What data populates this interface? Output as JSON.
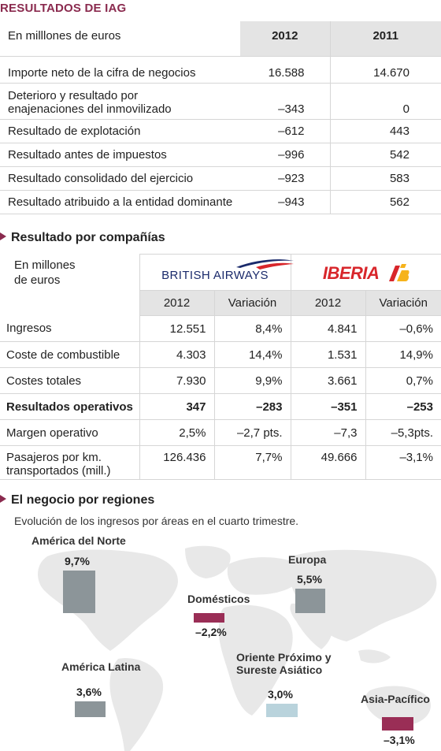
{
  "title": "RESULTADOS DE IAG",
  "table1": {
    "unit": "En milllones de euros",
    "years": [
      "2012",
      "2011"
    ],
    "rows": [
      {
        "label": "Importe neto de la cifra de negocios",
        "v2012": "16.588",
        "v2011": "14.670"
      },
      {
        "label": "Deterioro y resultado por enajenaciones del inmovilizado",
        "v2012": "–343",
        "v2011": "0"
      },
      {
        "label": "Resultado de explotación",
        "v2012": "–612",
        "v2011": "443"
      },
      {
        "label": "Resultado antes de impuestos",
        "v2012": "–996",
        "v2011": "542"
      },
      {
        "label": "Resultado consolidado del ejercicio",
        "v2012": "–923",
        "v2011": "583"
      },
      {
        "label": "Resultado atribuido a la entidad dominante",
        "v2012": "–943",
        "v2011": "562"
      }
    ]
  },
  "section2": {
    "title": "Resultado por compañías",
    "unit_line1": "En millones",
    "unit_line2": "de euros",
    "airline1": "BRITISH AIRWAYS",
    "airline2": "IBERIA",
    "col_year": "2012",
    "col_var": "Variación",
    "rows": [
      {
        "label": "Ingresos",
        "ba": "12.551",
        "ba_var": "8,4%",
        "ib": "4.841",
        "ib_var": "–0,6%"
      },
      {
        "label": "Coste de combustible",
        "ba": "4.303",
        "ba_var": "14,4%",
        "ib": "1.531",
        "ib_var": "14,9%"
      },
      {
        "label": "Costes totales",
        "ba": "7.930",
        "ba_var": "9,9%",
        "ib": "3.661",
        "ib_var": "0,7%"
      },
      {
        "label": "Resultados operativos",
        "ba": "347",
        "ba_var": "–283",
        "ib": "–351",
        "ib_var": "–253"
      },
      {
        "label": "Margen operativo",
        "ba": "2,5%",
        "ba_var": "–2,7 pts.",
        "ib": "–7,3",
        "ib_var": "–5,3pts."
      },
      {
        "label": "Pasajeros por km. transportados (mill.)",
        "ba": "126.436",
        "ba_var": "7,7%",
        "ib": "49.666",
        "ib_var": "–3,1%"
      }
    ]
  },
  "section3": {
    "title": "El negocio por regiones",
    "subtitle": "Evolución de los ingresos por áreas en el cuarto trimestre.",
    "regions": [
      {
        "name": "América del Norte",
        "value": "9,7%",
        "num": 9.7,
        "color": "#8c9599"
      },
      {
        "name": "Europa",
        "value": "5,5%",
        "num": 5.5,
        "color": "#8c9599"
      },
      {
        "name": "Domésticos",
        "value": "–2,2%",
        "num": -2.2,
        "color": "#9a2e56"
      },
      {
        "name": "América Latina",
        "value": "3,6%",
        "num": 3.6,
        "color": "#8c9599"
      },
      {
        "name": "Oriente Próximo y",
        "name2": "Sureste Asiático",
        "value": "3,0%",
        "num": 3.0,
        "color": "#b9d3dc"
      },
      {
        "name": "Asia-Pacífico",
        "value": "–3,1%",
        "num": -3.1,
        "color": "#9a2e56"
      }
    ]
  },
  "colors": {
    "accent": "#8a2a4e",
    "header_bg": "#e4e4e4",
    "ba_blue": "#1a2a6b",
    "iberia_red": "#d8262b",
    "iberia_yellow": "#f6b31b"
  }
}
